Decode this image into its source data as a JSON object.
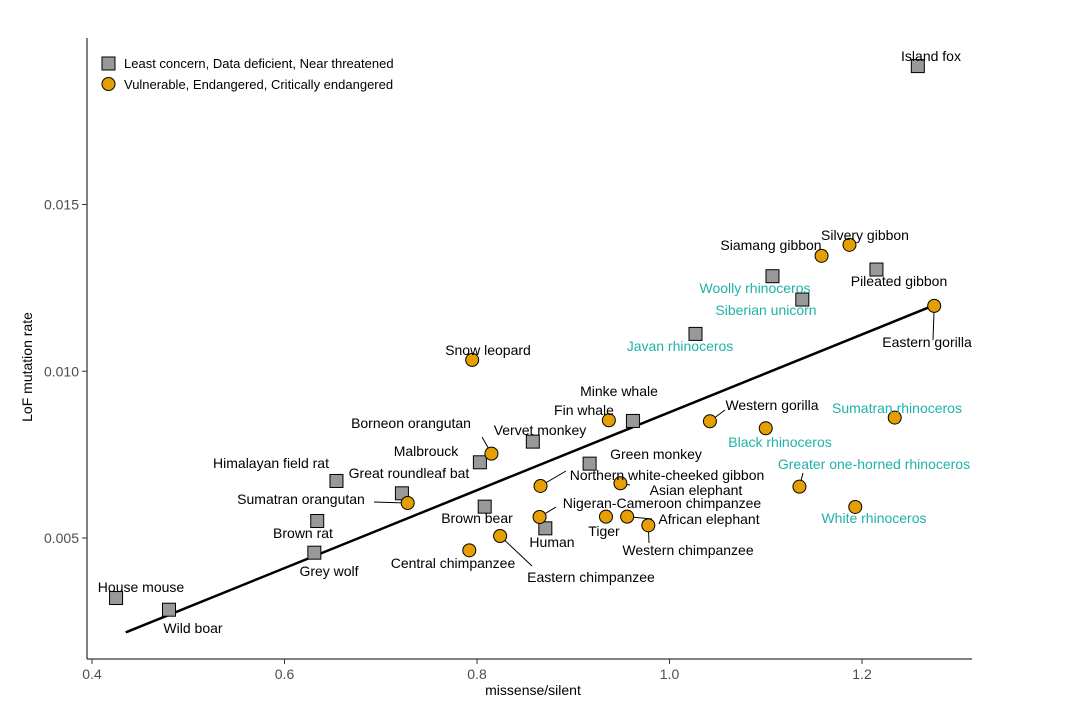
{
  "chart_data": {
    "type": "scatter",
    "xlabel": "missense/silent",
    "ylabel": "LoF mutation rate",
    "xlim": [
      0.39,
      1.32
    ],
    "ylim": [
      0.0016,
      0.0197
    ],
    "xticks": [
      0.4,
      0.6,
      0.8,
      1.0,
      1.2
    ],
    "xtick_labels": [
      "0.4",
      "0.6",
      "0.8",
      "1.0",
      "1.2"
    ],
    "yticks": [
      0.005,
      0.01,
      0.015
    ],
    "ytick_labels": [
      "0.005",
      "0.010",
      "0.015"
    ],
    "grid": false,
    "legend_position": "top-left",
    "colors": {
      "concern": "#999999",
      "threatened": "#E69F00",
      "extinct_label": "#20b2aa",
      "label": "#000000",
      "fit_line": "#000000"
    },
    "series": [
      {
        "name": "Least concern, Data deficient, Near threatened",
        "marker": "square",
        "color": "#999999"
      },
      {
        "name": "Vulnerable, Endangered, Critically endangered",
        "marker": "circle",
        "color": "#E69F00"
      }
    ],
    "fit_line": {
      "x": [
        0.435,
        1.275
      ],
      "y": [
        0.00217,
        0.01198
      ]
    },
    "points": [
      {
        "label": "Island fox",
        "x": 1.258,
        "y": 0.01915,
        "series": 0
      },
      {
        "label": "Pileated gibbon",
        "x": 1.215,
        "y": 0.01305,
        "series": 0
      },
      {
        "label": "Siamang gibbon",
        "x": 1.107,
        "y": 0.01285,
        "series": 0
      },
      {
        "label": "Woolly rhinoceros",
        "x": 1.138,
        "y": 0.01215,
        "series": 0,
        "extinct": true
      },
      {
        "label": "Javan rhinoceros",
        "x": 1.027,
        "y": 0.01112,
        "series": 0
      },
      {
        "label": "Minke whale",
        "x": 0.962,
        "y": 0.00851,
        "series": 0
      },
      {
        "label": "Vervet monkey",
        "x": 0.858,
        "y": 0.00789,
        "series": 0
      },
      {
        "label": "Green monkey",
        "x": 0.917,
        "y": 0.00723,
        "series": 0
      },
      {
        "label": "Malbrouck",
        "x": 0.803,
        "y": 0.00727,
        "series": 0
      },
      {
        "label": "Himalayan field rat",
        "x": 0.654,
        "y": 0.00671,
        "series": 0
      },
      {
        "label": "Great roundleaf bat",
        "x": 0.722,
        "y": 0.00634,
        "series": 0
      },
      {
        "label": "Brown bear",
        "x": 0.808,
        "y": 0.00594,
        "series": 0
      },
      {
        "label": "Human",
        "x": 0.871,
        "y": 0.00529,
        "series": 0
      },
      {
        "label": "Brown rat",
        "x": 0.634,
        "y": 0.00551,
        "series": 0
      },
      {
        "label": "Grey wolf",
        "x": 0.631,
        "y": 0.00456,
        "series": 0
      },
      {
        "label": "House mouse",
        "x": 0.425,
        "y": 0.0032,
        "series": 0
      },
      {
        "label": "Wild boar",
        "x": 0.48,
        "y": 0.00285,
        "series": 0
      },
      {
        "label": "Silvery gibbon",
        "x": 1.187,
        "y": 0.01379,
        "series": 1
      },
      {
        "label": "Siberian unicorn",
        "x": 1.158,
        "y": 0.01346,
        "series": 1,
        "extinct": true
      },
      {
        "label": "Eastern gorilla",
        "x": 1.275,
        "y": 0.01196,
        "series": 1
      },
      {
        "label": "Snow leopard",
        "x": 0.795,
        "y": 0.01034,
        "series": 1
      },
      {
        "label": "Fin whale",
        "x": 0.937,
        "y": 0.00853,
        "series": 1
      },
      {
        "label": "Western gorilla",
        "x": 1.042,
        "y": 0.0085,
        "series": 1
      },
      {
        "label": "Black rhinoceros",
        "x": 1.1,
        "y": 0.00829,
        "series": 1
      },
      {
        "label": "Sumatran rhinoceros",
        "x": 1.234,
        "y": 0.00861,
        "series": 1
      },
      {
        "label": "Borneon orangutan",
        "x": 0.815,
        "y": 0.00753,
        "series": 1
      },
      {
        "label": "Asian elephant",
        "x": 0.949,
        "y": 0.00664,
        "series": 1
      },
      {
        "label": "Northern white-cheeked gibbon",
        "x": 0.866,
        "y": 0.00656,
        "series": 1
      },
      {
        "label": "Greater one-horned rhinoceros",
        "x": 1.135,
        "y": 0.00654,
        "series": 1
      },
      {
        "label": "Sumatran orangutan",
        "x": 0.728,
        "y": 0.00605,
        "series": 1
      },
      {
        "label": "White rhinoceros",
        "x": 1.193,
        "y": 0.00593,
        "series": 1
      },
      {
        "label": "Nigeran-Cameroon chimpanzee",
        "x": 0.865,
        "y": 0.00563,
        "series": 1
      },
      {
        "label": "Tiger",
        "x": 0.934,
        "y": 0.00564,
        "series": 1
      },
      {
        "label": "African elephant",
        "x": 0.956,
        "y": 0.00564,
        "series": 1
      },
      {
        "label": "Western chimpanzee",
        "x": 0.978,
        "y": 0.00538,
        "series": 1
      },
      {
        "label": "Eastern chimpanzee",
        "x": 0.824,
        "y": 0.00506,
        "series": 1
      },
      {
        "label": "Central chimpanzee",
        "x": 0.792,
        "y": 0.00463,
        "series": 1
      }
    ]
  }
}
